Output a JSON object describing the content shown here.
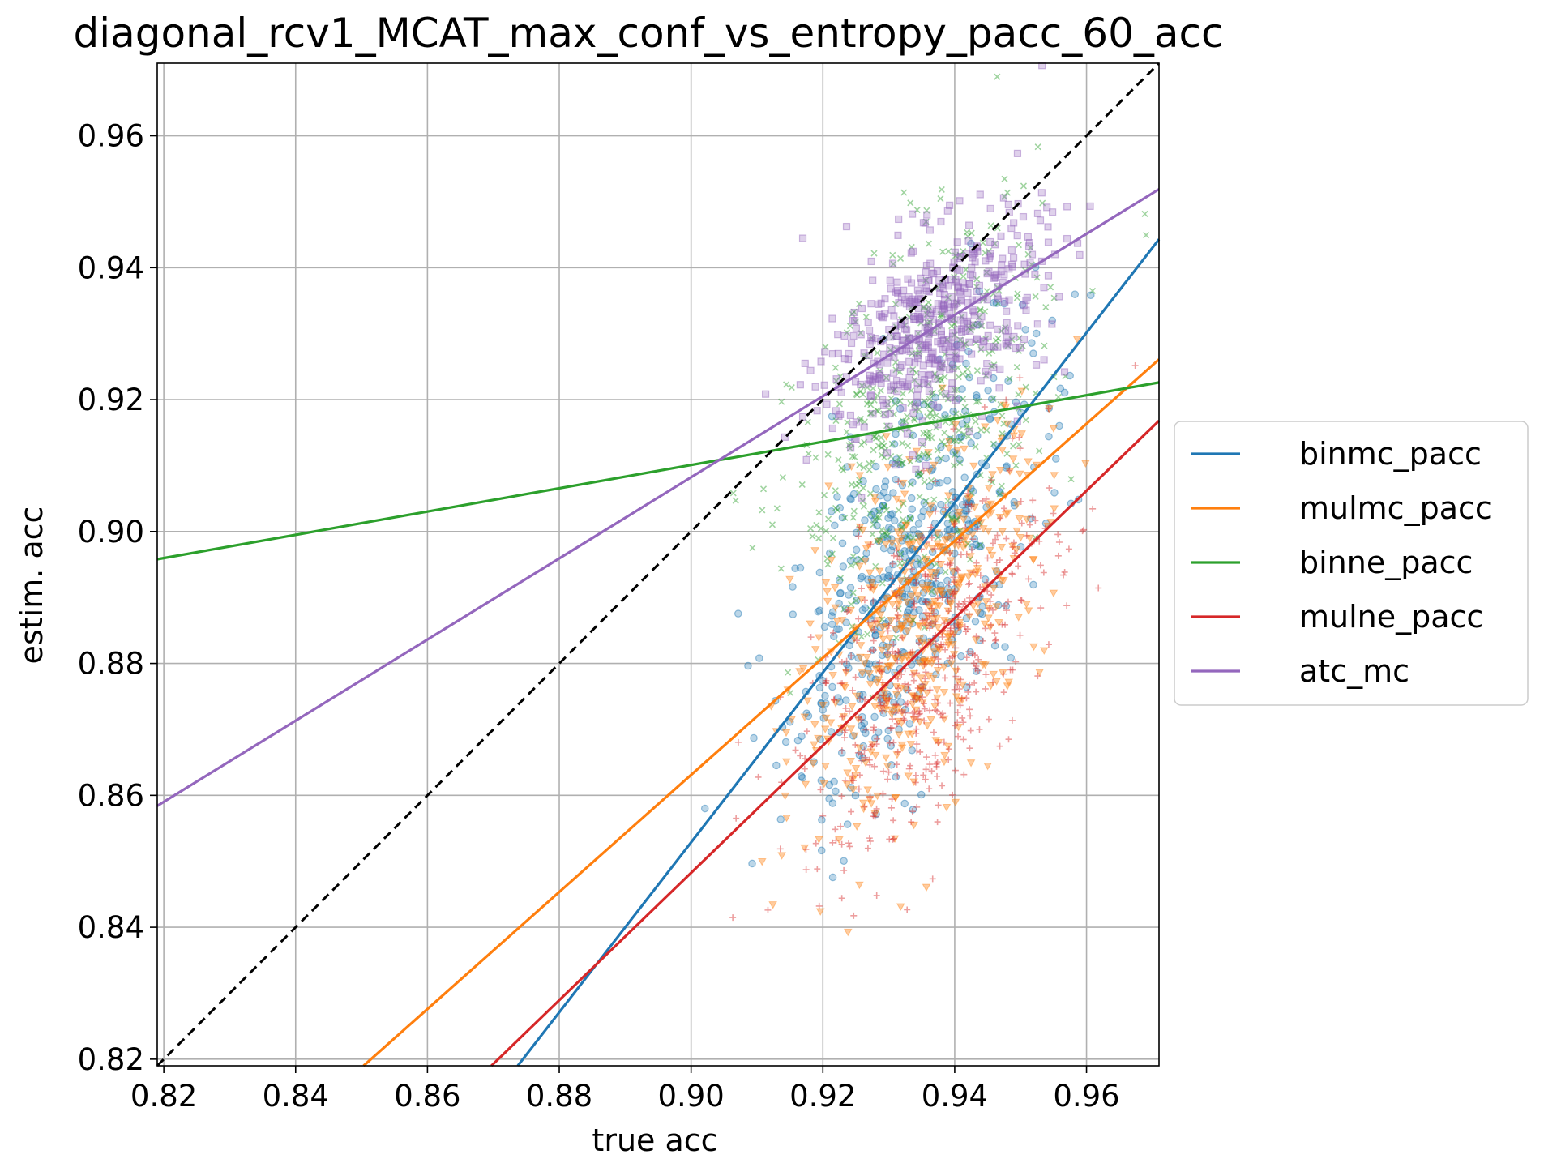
{
  "chart_data": {
    "type": "scatter",
    "title": "diagonal_rcv1_MCAT_max_conf_vs_entropy_pacc_60_acc",
    "xlabel": "true acc",
    "ylabel": "estim. acc",
    "xlim": [
      0.819,
      0.971
    ],
    "ylim": [
      0.819,
      0.971
    ],
    "xticks": [
      "0.82",
      "0.84",
      "0.86",
      "0.88",
      "0.90",
      "0.92",
      "0.94",
      "0.96"
    ],
    "yticks": [
      "0.82",
      "0.84",
      "0.86",
      "0.88",
      "0.90",
      "0.92",
      "0.94",
      "0.96"
    ],
    "xtick_values": [
      0.82,
      0.84,
      0.86,
      0.88,
      0.9,
      0.92,
      0.94,
      0.96
    ],
    "ytick_values": [
      0.82,
      0.84,
      0.86,
      0.88,
      0.9,
      0.92,
      0.94,
      0.96
    ],
    "grid": true,
    "legend_position": "right, outside plot",
    "diagonal": {
      "style": "dashed",
      "color": "#000000",
      "from": [
        0.819,
        0.819
      ],
      "to": [
        0.971,
        0.971
      ]
    },
    "series": [
      {
        "name": "binmc_pacc",
        "color": "#1f77b4",
        "marker": "circle",
        "fit_line": {
          "from": [
            0.8737,
            0.819
          ],
          "to": [
            0.971,
            0.9443
          ]
        },
        "cloud": {
          "x_mean": 0.933,
          "x_sd": 0.0095,
          "y_mean": 0.893,
          "y_sd": 0.017,
          "rho": 0.6
        },
        "n_points": 500
      },
      {
        "name": "mulmc_pacc",
        "color": "#ff7f0e",
        "marker": "triangle-down",
        "fit_line": {
          "from": [
            0.8503,
            0.819
          ],
          "to": [
            0.971,
            0.9261
          ]
        },
        "cloud": {
          "x_mean": 0.935,
          "x_sd": 0.0095,
          "y_mean": 0.886,
          "y_sd": 0.015,
          "rho": 0.6
        },
        "n_points": 500
      },
      {
        "name": "binne_pacc",
        "color": "#2ca02c",
        "marker": "x",
        "fit_line": {
          "from": [
            0.819,
            0.8958
          ],
          "to": [
            0.971,
            0.9226
          ]
        },
        "cloud": {
          "x_mean": 0.935,
          "x_sd": 0.0095,
          "y_mean": 0.917,
          "y_sd": 0.015,
          "rho": 0.5
        },
        "n_points": 500
      },
      {
        "name": "mulne_pacc",
        "color": "#d62728",
        "marker": "plus",
        "fit_line": {
          "from": [
            0.8697,
            0.819
          ],
          "to": [
            0.971,
            0.9168
          ]
        },
        "cloud": {
          "x_mean": 0.936,
          "x_sd": 0.0095,
          "y_mean": 0.881,
          "y_sd": 0.015,
          "rho": 0.6
        },
        "n_points": 500
      },
      {
        "name": "atc_mc",
        "color": "#9467bd",
        "marker": "square",
        "fit_line": {
          "from": [
            0.819,
            0.8584
          ],
          "to": [
            0.971,
            0.9519
          ]
        },
        "cloud": {
          "x_mean": 0.937,
          "x_sd": 0.0085,
          "y_mean": 0.931,
          "y_sd": 0.0085,
          "rho": 0.5
        },
        "n_points": 500
      }
    ]
  }
}
